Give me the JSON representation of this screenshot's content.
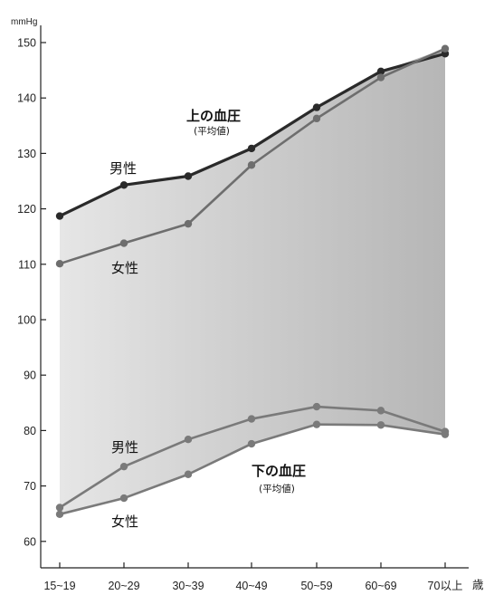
{
  "chart_data": {
    "type": "line",
    "y_unit": "mmHg",
    "x_unit": "歳",
    "categories": [
      "15~19",
      "20~29",
      "30~39",
      "40~49",
      "50~59",
      "60~69",
      "70以上"
    ],
    "ylim": [
      55,
      152
    ],
    "yticks": [
      60,
      70,
      80,
      90,
      100,
      110,
      120,
      130,
      140,
      150
    ],
    "grid": false,
    "groups": [
      {
        "title": "上の血圧",
        "subtitle": "(平均値)",
        "series": [
          {
            "name": "男性",
            "values": [
              118.7,
              124.3,
              125.9,
              130.9,
              138.3,
              144.8,
              148.0
            ],
            "color": "#2a2a2a"
          },
          {
            "name": "女性",
            "values": [
              110.1,
              113.8,
              117.3,
              127.9,
              136.3,
              143.7,
              148.9
            ],
            "color": "#6e6e6e"
          }
        ]
      },
      {
        "title": "下の血圧",
        "subtitle": "(平均値)",
        "series": [
          {
            "name": "男性",
            "values": [
              66.1,
              73.5,
              78.4,
              82.1,
              84.3,
              83.6,
              79.8
            ],
            "color": "#7a7a7a"
          },
          {
            "name": "女性",
            "values": [
              64.9,
              67.8,
              72.1,
              77.6,
              81.1,
              81.0,
              79.3
            ],
            "color": "#7a7a7a"
          }
        ]
      }
    ]
  }
}
